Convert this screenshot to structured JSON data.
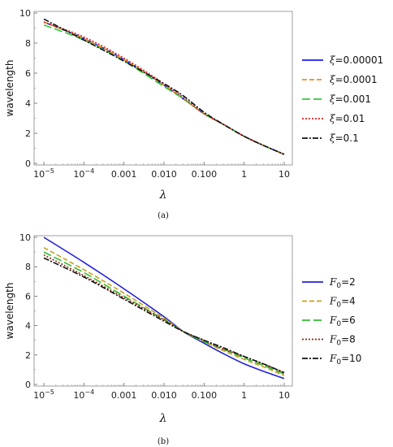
{
  "chart_data": [
    {
      "type": "line",
      "caption": "(a)",
      "xlabel": "λ",
      "ylabel": "wavelength",
      "xscale": "log",
      "xlim": [
        1e-05,
        10
      ],
      "ylim": [
        0,
        10
      ],
      "x_ticks": [
        {
          "v": 1e-05,
          "base": "10",
          "exp": "−5"
        },
        {
          "v": 0.0001,
          "base": "10",
          "exp": "−4"
        },
        {
          "v": 0.001,
          "label": "0.001"
        },
        {
          "v": 0.01,
          "label": "0.010"
        },
        {
          "v": 0.1,
          "label": "0.100"
        },
        {
          "v": 1,
          "label": "1"
        },
        {
          "v": 10,
          "label": "10"
        }
      ],
      "y_ticks": [
        {
          "v": 0,
          "label": "0"
        },
        {
          "v": 2,
          "label": "2"
        },
        {
          "v": 4,
          "label": "4"
        },
        {
          "v": 6,
          "label": "6"
        },
        {
          "v": 8,
          "label": "8"
        },
        {
          "v": 10,
          "label": "10"
        }
      ],
      "legend_position": "right",
      "x": [
        1e-05,
        0.0001,
        0.001,
        0.01,
        0.03,
        0.1,
        0.3,
        1,
        3,
        10
      ],
      "series": [
        {
          "sym": "ξ",
          "name": "=0.00001",
          "color": "#1a1aff",
          "dash": "",
          "values": [
            9.4,
            8.3,
            6.9,
            5.2,
            4.3,
            3.3,
            2.6,
            1.8,
            1.2,
            0.6
          ]
        },
        {
          "sym": "ξ",
          "name": "=0.0001",
          "color": "#e8902a",
          "dash": "6,3",
          "values": [
            9.4,
            8.3,
            6.9,
            5.2,
            4.3,
            3.3,
            2.6,
            1.8,
            1.2,
            0.6
          ]
        },
        {
          "sym": "ξ",
          "name": "=0.001",
          "color": "#33cc33",
          "dash": "10,4",
          "values": [
            9.2,
            8.2,
            6.8,
            5.1,
            4.3,
            3.3,
            2.6,
            1.8,
            1.2,
            0.6
          ]
        },
        {
          "sym": "ξ",
          "name": "=0.01",
          "color": "#e02020",
          "dash": "2,2",
          "values": [
            9.4,
            8.4,
            7.0,
            5.3,
            4.4,
            3.3,
            2.6,
            1.8,
            1.2,
            0.6
          ]
        },
        {
          "sym": "ξ",
          "name": "=0.1",
          "color": "#111111",
          "dash": "7,2,2,2",
          "values": [
            9.6,
            8.2,
            6.8,
            5.3,
            4.5,
            3.4,
            2.6,
            1.8,
            1.2,
            0.6
          ]
        }
      ]
    },
    {
      "type": "line",
      "caption": "(b)",
      "xlabel": "λ",
      "ylabel": "wavelength",
      "xscale": "log",
      "xlim": [
        1e-05,
        10
      ],
      "ylim": [
        0,
        10
      ],
      "x_ticks": [
        {
          "v": 1e-05,
          "base": "10",
          "exp": "−5"
        },
        {
          "v": 0.0001,
          "base": "10",
          "exp": "−4"
        },
        {
          "v": 0.001,
          "label": "0.001"
        },
        {
          "v": 0.01,
          "label": "0.010"
        },
        {
          "v": 0.1,
          "label": "0.100"
        },
        {
          "v": 1,
          "label": "1"
        },
        {
          "v": 10,
          "label": "10"
        }
      ],
      "y_ticks": [
        {
          "v": 0,
          "label": "0"
        },
        {
          "v": 2,
          "label": "2"
        },
        {
          "v": 4,
          "label": "4"
        },
        {
          "v": 6,
          "label": "6"
        },
        {
          "v": 8,
          "label": "8"
        },
        {
          "v": 10,
          "label": "10"
        }
      ],
      "legend_position": "right",
      "x": [
        1e-05,
        0.0001,
        0.001,
        0.01,
        0.03,
        0.1,
        0.3,
        1,
        3,
        10
      ],
      "series": [
        {
          "sym": "F",
          "sub": "0",
          "name": "=2",
          "color": "#2020dd",
          "dash": "",
          "values": [
            10.0,
            8.3,
            6.5,
            4.6,
            3.6,
            2.8,
            2.1,
            1.4,
            0.9,
            0.4
          ]
        },
        {
          "sym": "F",
          "sub": "0",
          "name": "=4",
          "color": "#c8a020",
          "dash": "6,3",
          "values": [
            9.3,
            7.8,
            6.2,
            4.5,
            3.6,
            2.9,
            2.3,
            1.7,
            1.2,
            0.6
          ]
        },
        {
          "sym": "F",
          "sub": "0",
          "name": "=6",
          "color": "#33bb33",
          "dash": "10,4",
          "values": [
            9.0,
            7.6,
            6.0,
            4.4,
            3.6,
            2.9,
            2.4,
            1.8,
            1.3,
            0.7
          ]
        },
        {
          "sym": "F",
          "sub": "0",
          "name": "=8",
          "color": "#8b2a10",
          "dash": "2,2",
          "values": [
            8.8,
            7.4,
            5.9,
            4.4,
            3.6,
            3.0,
            2.4,
            1.9,
            1.4,
            0.8
          ]
        },
        {
          "sym": "F",
          "sub": "0",
          "name": "=10",
          "color": "#111111",
          "dash": "7,2,2,2",
          "values": [
            8.6,
            7.3,
            5.8,
            4.3,
            3.6,
            3.0,
            2.5,
            1.9,
            1.4,
            0.8
          ]
        }
      ]
    }
  ]
}
